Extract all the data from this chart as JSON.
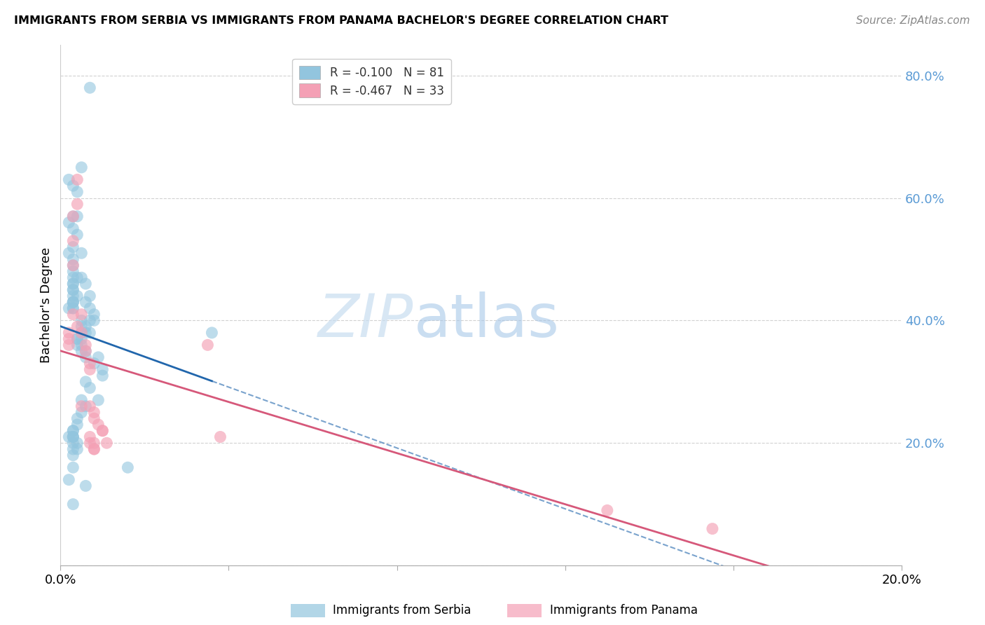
{
  "title": "IMMIGRANTS FROM SERBIA VS IMMIGRANTS FROM PANAMA BACHELOR'S DEGREE CORRELATION CHART",
  "source": "Source: ZipAtlas.com",
  "ylabel": "Bachelor's Degree",
  "watermark": "ZIPatlas",
  "serbia_color": "#92c5de",
  "panama_color": "#f4a0b5",
  "serbia_line_color": "#2166ac",
  "panama_line_color": "#d6587a",
  "serbia_R": -0.1,
  "serbia_N": 81,
  "panama_R": -0.467,
  "panama_N": 33,
  "serbia_label": "Immigrants from Serbia",
  "panama_label": "Immigrants from Panama",
  "xlim": [
    0.0,
    0.2
  ],
  "ylim": [
    0.0,
    0.85
  ],
  "yticks": [
    0.0,
    0.2,
    0.4,
    0.6,
    0.8
  ],
  "ytick_labels": [
    "",
    "20.0%",
    "40.0%",
    "60.0%",
    "80.0%"
  ],
  "serbia_x": [
    0.007,
    0.002,
    0.003,
    0.004,
    0.003,
    0.002,
    0.003,
    0.004,
    0.003,
    0.002,
    0.003,
    0.003,
    0.003,
    0.003,
    0.004,
    0.003,
    0.003,
    0.003,
    0.003,
    0.004,
    0.003,
    0.003,
    0.003,
    0.003,
    0.002,
    0.003,
    0.003,
    0.005,
    0.004,
    0.005,
    0.005,
    0.006,
    0.007,
    0.006,
    0.007,
    0.008,
    0.007,
    0.008,
    0.005,
    0.005,
    0.006,
    0.007,
    0.005,
    0.006,
    0.005,
    0.004,
    0.004,
    0.004,
    0.005,
    0.005,
    0.006,
    0.009,
    0.006,
    0.008,
    0.01,
    0.01,
    0.006,
    0.007,
    0.009,
    0.036,
    0.005,
    0.006,
    0.005,
    0.004,
    0.004,
    0.003,
    0.003,
    0.003,
    0.003,
    0.002,
    0.003,
    0.003,
    0.004,
    0.004,
    0.003,
    0.003,
    0.016,
    0.003,
    0.002,
    0.006,
    0.003
  ],
  "serbia_y": [
    0.78,
    0.63,
    0.62,
    0.61,
    0.57,
    0.56,
    0.55,
    0.54,
    0.52,
    0.51,
    0.5,
    0.49,
    0.48,
    0.47,
    0.47,
    0.46,
    0.46,
    0.45,
    0.45,
    0.44,
    0.44,
    0.43,
    0.43,
    0.43,
    0.42,
    0.42,
    0.42,
    0.65,
    0.57,
    0.51,
    0.47,
    0.46,
    0.44,
    0.43,
    0.42,
    0.41,
    0.4,
    0.4,
    0.4,
    0.39,
    0.39,
    0.38,
    0.38,
    0.38,
    0.37,
    0.37,
    0.37,
    0.36,
    0.36,
    0.35,
    0.35,
    0.34,
    0.34,
    0.33,
    0.32,
    0.31,
    0.3,
    0.29,
    0.27,
    0.38,
    0.27,
    0.26,
    0.25,
    0.24,
    0.23,
    0.22,
    0.22,
    0.21,
    0.21,
    0.21,
    0.21,
    0.2,
    0.2,
    0.19,
    0.19,
    0.18,
    0.16,
    0.16,
    0.14,
    0.13,
    0.1
  ],
  "panama_x": [
    0.002,
    0.002,
    0.002,
    0.003,
    0.003,
    0.003,
    0.004,
    0.004,
    0.003,
    0.005,
    0.004,
    0.005,
    0.006,
    0.006,
    0.007,
    0.007,
    0.007,
    0.008,
    0.008,
    0.009,
    0.01,
    0.01,
    0.011,
    0.007,
    0.008,
    0.008,
    0.035,
    0.038,
    0.13,
    0.155,
    0.007,
    0.008,
    0.005
  ],
  "panama_y": [
    0.38,
    0.37,
    0.36,
    0.57,
    0.53,
    0.49,
    0.63,
    0.59,
    0.41,
    0.41,
    0.39,
    0.38,
    0.36,
    0.35,
    0.33,
    0.32,
    0.26,
    0.25,
    0.24,
    0.23,
    0.22,
    0.22,
    0.2,
    0.2,
    0.19,
    0.19,
    0.36,
    0.21,
    0.09,
    0.06,
    0.21,
    0.2,
    0.26
  ]
}
